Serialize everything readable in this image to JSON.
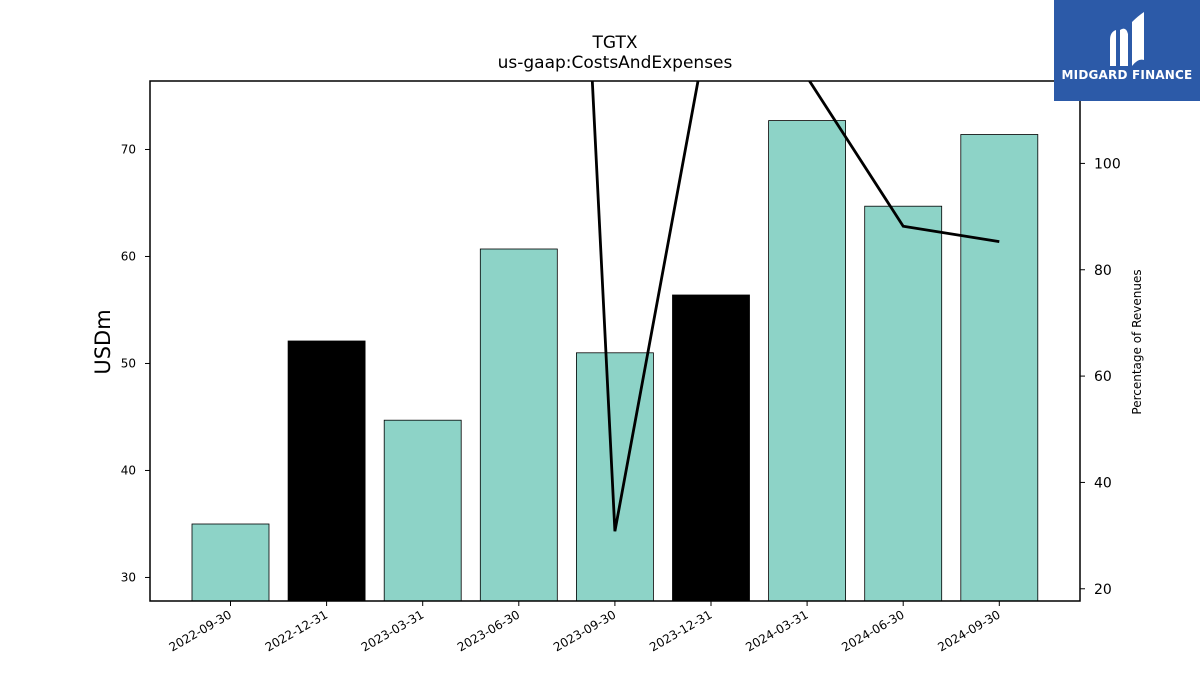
{
  "chart_data": {
    "type": "bar",
    "title": "TGTX",
    "subtitle": "us-gaap:CostsAndExpenses",
    "ylabel": "USDm",
    "y2label": "Percentage of Revenues",
    "categories": [
      "2022-09-30",
      "2022-12-31",
      "2023-03-31",
      "2023-06-30",
      "2023-09-30",
      "2023-12-31",
      "2024-03-31",
      "2024-06-30",
      "2024-09-30"
    ],
    "values": [
      35.0,
      52.1,
      44.7,
      60.7,
      51.0,
      56.4,
      72.7,
      64.7,
      71.4
    ],
    "bar_colors": [
      "#8dd3c7",
      "#000000",
      "#8dd3c7",
      "#8dd3c7",
      "#8dd3c7",
      "#000000",
      "#8dd3c7",
      "#8dd3c7",
      "#8dd3c7"
    ],
    "ylim": [
      27.8,
      76.4
    ],
    "yticks": [
      30,
      40,
      50,
      60,
      70
    ],
    "line_series": {
      "values": [
        null,
        null,
        null,
        null,
        30.8,
        null,
        null,
        88.2,
        85.3
      ],
      "segments": [
        [
          [
            3.765,
            115.5
          ],
          [
            4,
            30.8
          ],
          [
            4.865,
            115.5
          ]
        ],
        [
          [
            6.025,
            115.5
          ],
          [
            7,
            88.2
          ],
          [
            8,
            85.3
          ]
        ]
      ],
      "color": "#000000"
    },
    "y2lim": [
      17.7,
      115.5
    ],
    "y2ticks": [
      20,
      40,
      60,
      80,
      100
    ]
  },
  "logo": {
    "text": "MIDGARD FINANCE",
    "color": "#2c5aa8"
  }
}
